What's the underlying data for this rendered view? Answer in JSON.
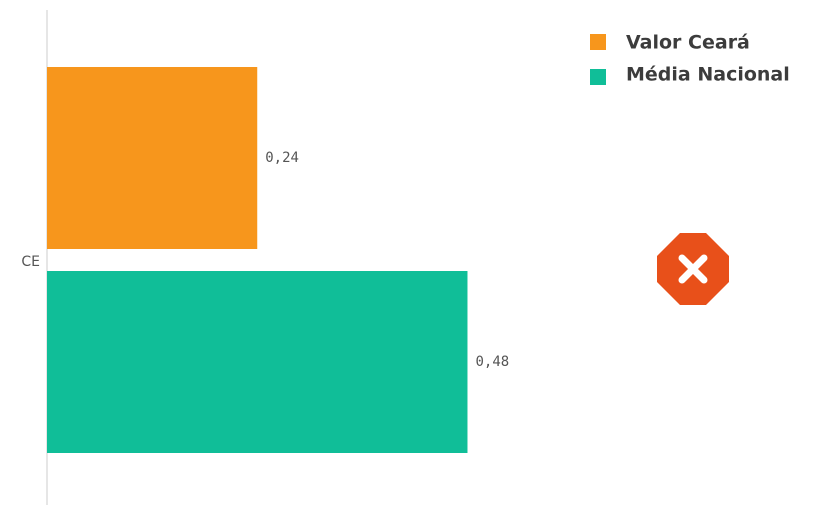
{
  "chart_data": {
    "type": "barh",
    "categories": [
      "CE"
    ],
    "series": [
      {
        "name": "Valor Ceará",
        "color": "#f7961c",
        "values": [
          0.24
        ],
        "value_labels": [
          "0,24"
        ]
      },
      {
        "name": "Média Nacional",
        "color": "#10be98",
        "values": [
          0.48
        ],
        "value_labels": [
          "0,48"
        ]
      }
    ],
    "xlim": [
      0,
      0.5
    ],
    "legend": "top-right"
  }
}
